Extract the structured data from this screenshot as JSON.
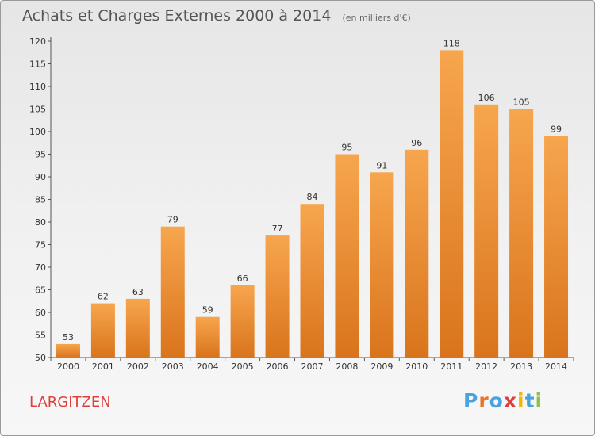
{
  "header": {
    "title": "Achats et Charges Externes 2000 à 2014",
    "subtitle": "(en milliers d'€)"
  },
  "footer": {
    "commune": "LARGITZEN",
    "brand": "Proxiti"
  },
  "colors": {
    "bar_light": "#f7a64e",
    "bar_dark": "#d9741c",
    "axis": "#555555",
    "commune": "#e0403b",
    "brand_letters": [
      "#4aa3df",
      "#e8742b",
      "#4aa3df",
      "#e0403b",
      "#f2b705",
      "#4aa3df",
      "#8bc34a"
    ]
  },
  "chart_data": {
    "type": "bar",
    "title": "Achats et Charges Externes 2000 à 2014",
    "subtitle": "(en milliers d'€)",
    "categories": [
      "2000",
      "2001",
      "2002",
      "2003",
      "2004",
      "2005",
      "2006",
      "2007",
      "2008",
      "2009",
      "2010",
      "2011",
      "2012",
      "2013",
      "2014"
    ],
    "values": [
      53,
      62,
      63,
      79,
      59,
      66,
      77,
      84,
      95,
      91,
      96,
      118,
      106,
      105,
      99
    ],
    "ylim": [
      50,
      120
    ],
    "yticks": [
      50,
      55,
      60,
      65,
      70,
      75,
      80,
      85,
      90,
      95,
      100,
      105,
      110,
      115,
      120
    ],
    "grid": false,
    "data_labels": true
  }
}
